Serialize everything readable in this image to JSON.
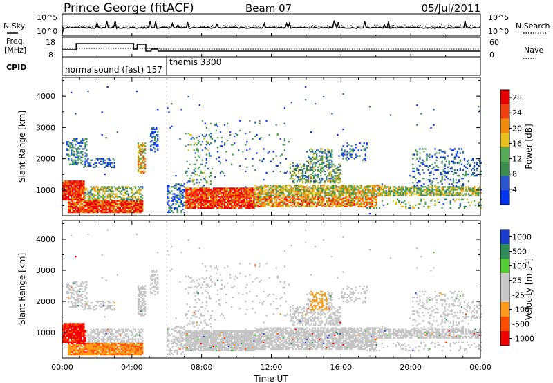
{
  "header": {
    "station": "Prince George (fitACF)",
    "beam": "Beam 07",
    "date": "05/Jul/2011"
  },
  "params": {
    "nsky_label": "N.Sky",
    "nsearch_label": "N.Search",
    "nsky_ticks": [
      "10^5",
      "10^0"
    ],
    "nsearch_ticks": [
      "10^5",
      "10^0"
    ],
    "freq_label": "Freq.",
    "freq_unit": "[MHz]",
    "freq_ticks": [
      "18",
      "8"
    ],
    "nave_label": "Nave",
    "nave_ticks": [
      "60",
      "0"
    ],
    "cpid_label": "CPID",
    "cpid_segments": [
      {
        "label": "normalsound (fast) 157",
        "start_hour": 0
      },
      {
        "label": "themis 3300",
        "start_hour": 6
      }
    ]
  },
  "colors": {
    "power": [
      "#0033ee",
      "#2a55cc",
      "#3c8c50",
      "#55aa55",
      "#e8c020",
      "#f08a10",
      "#f04010",
      "#e80000"
    ],
    "velocity": [
      "#ee0000",
      "#ff4d00",
      "#ff9a1a",
      "#c8c8c8",
      "#c8c8c8",
      "#55cc33",
      "#2d8c55",
      "#1a3ccc"
    ],
    "ground_scatter": "#c4c4c4"
  },
  "chart_data": [
    {
      "type": "heatmap",
      "name": "power",
      "xlabel": "",
      "ylabel": "Slant Range [km]",
      "xlim": [
        0,
        24
      ],
      "ylim": [
        180,
        4600
      ],
      "y_ticks": [
        "1000",
        "2000",
        "3000",
        "4000"
      ],
      "colorbar": {
        "label": "Power [dB]",
        "ticks": [
          "4",
          "8",
          "12",
          "16",
          "20",
          "24",
          "28"
        ],
        "range": [
          0,
          30
        ]
      }
    },
    {
      "type": "heatmap",
      "name": "velocity",
      "xlabel": "Time UT",
      "ylabel": "Slant Range [km]",
      "xlim": [
        0,
        24
      ],
      "ylim": [
        180,
        4600
      ],
      "x_ticks": [
        "00:00",
        "04:00",
        "08:00",
        "12:00",
        "16:00",
        "20:00",
        "00:00"
      ],
      "y_ticks": [
        "1000",
        "2000",
        "3000",
        "4000"
      ],
      "colorbar": {
        "label": "Velocity [m s^-1]",
        "ticks": [
          "-1000",
          "-500",
          "-100",
          "-25",
          "25",
          "100",
          "500",
          "1000"
        ]
      }
    }
  ]
}
